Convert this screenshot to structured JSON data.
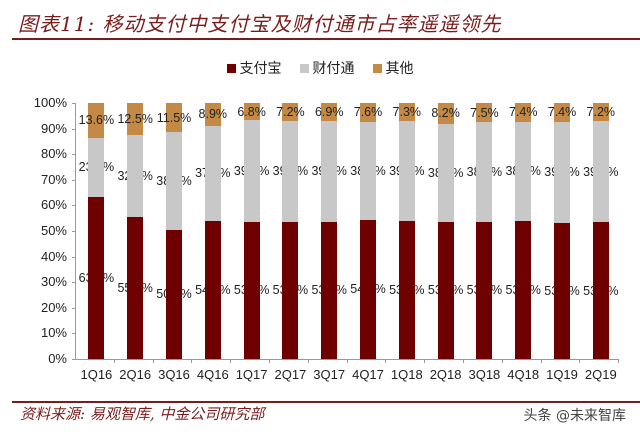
{
  "title": "图表11: 移动支付中支付宝及财付通市占率遥遥领先",
  "legend": [
    {
      "label": "支付宝",
      "color": "#6e0000"
    },
    {
      "label": "财付通",
      "color": "#c8c8c8"
    },
    {
      "label": "其他",
      "color": "#c48a45"
    }
  ],
  "footer": {
    "source": "资料来源: 易观智库, 中金公司研究部",
    "watermark": "头条 @未来智库"
  },
  "chart_data": {
    "type": "bar",
    "stacked": true,
    "title": "图表11: 移动支付中支付宝及财付通市占率遥遥领先",
    "xlabel": "",
    "ylabel": "",
    "ylim": [
      0,
      100
    ],
    "yticks": [
      "0%",
      "10%",
      "20%",
      "30%",
      "40%",
      "50%",
      "60%",
      "70%",
      "80%",
      "90%",
      "100%"
    ],
    "legend_position": "top",
    "grid": false,
    "categories": [
      "1Q16",
      "2Q16",
      "3Q16",
      "4Q16",
      "1Q17",
      "2Q17",
      "3Q17",
      "4Q17",
      "1Q18",
      "2Q18",
      "3Q18",
      "4Q18",
      "1Q19",
      "2Q19"
    ],
    "series": [
      {
        "name": "支付宝",
        "color": "#6e0000",
        "values": [
          63.4,
          55.4,
          50.4,
          54.1,
          53.7,
          53.7,
          53.7,
          54.3,
          53.8,
          53.6,
          53.7,
          53.8,
          53.2,
          53.4
        ]
      },
      {
        "name": "财付通",
        "color": "#c8c8c8",
        "values": [
          23.0,
          32.1,
          38.1,
          37.0,
          39.5,
          39.1,
          39.4,
          38.2,
          39.0,
          38.2,
          38.8,
          38.9,
          39.4,
          39.5
        ]
      },
      {
        "name": "其他",
        "color": "#c48a45",
        "values": [
          13.6,
          12.5,
          11.5,
          8.9,
          6.8,
          7.2,
          6.9,
          7.6,
          7.3,
          8.2,
          7.5,
          7.4,
          7.4,
          7.2
        ]
      }
    ]
  }
}
